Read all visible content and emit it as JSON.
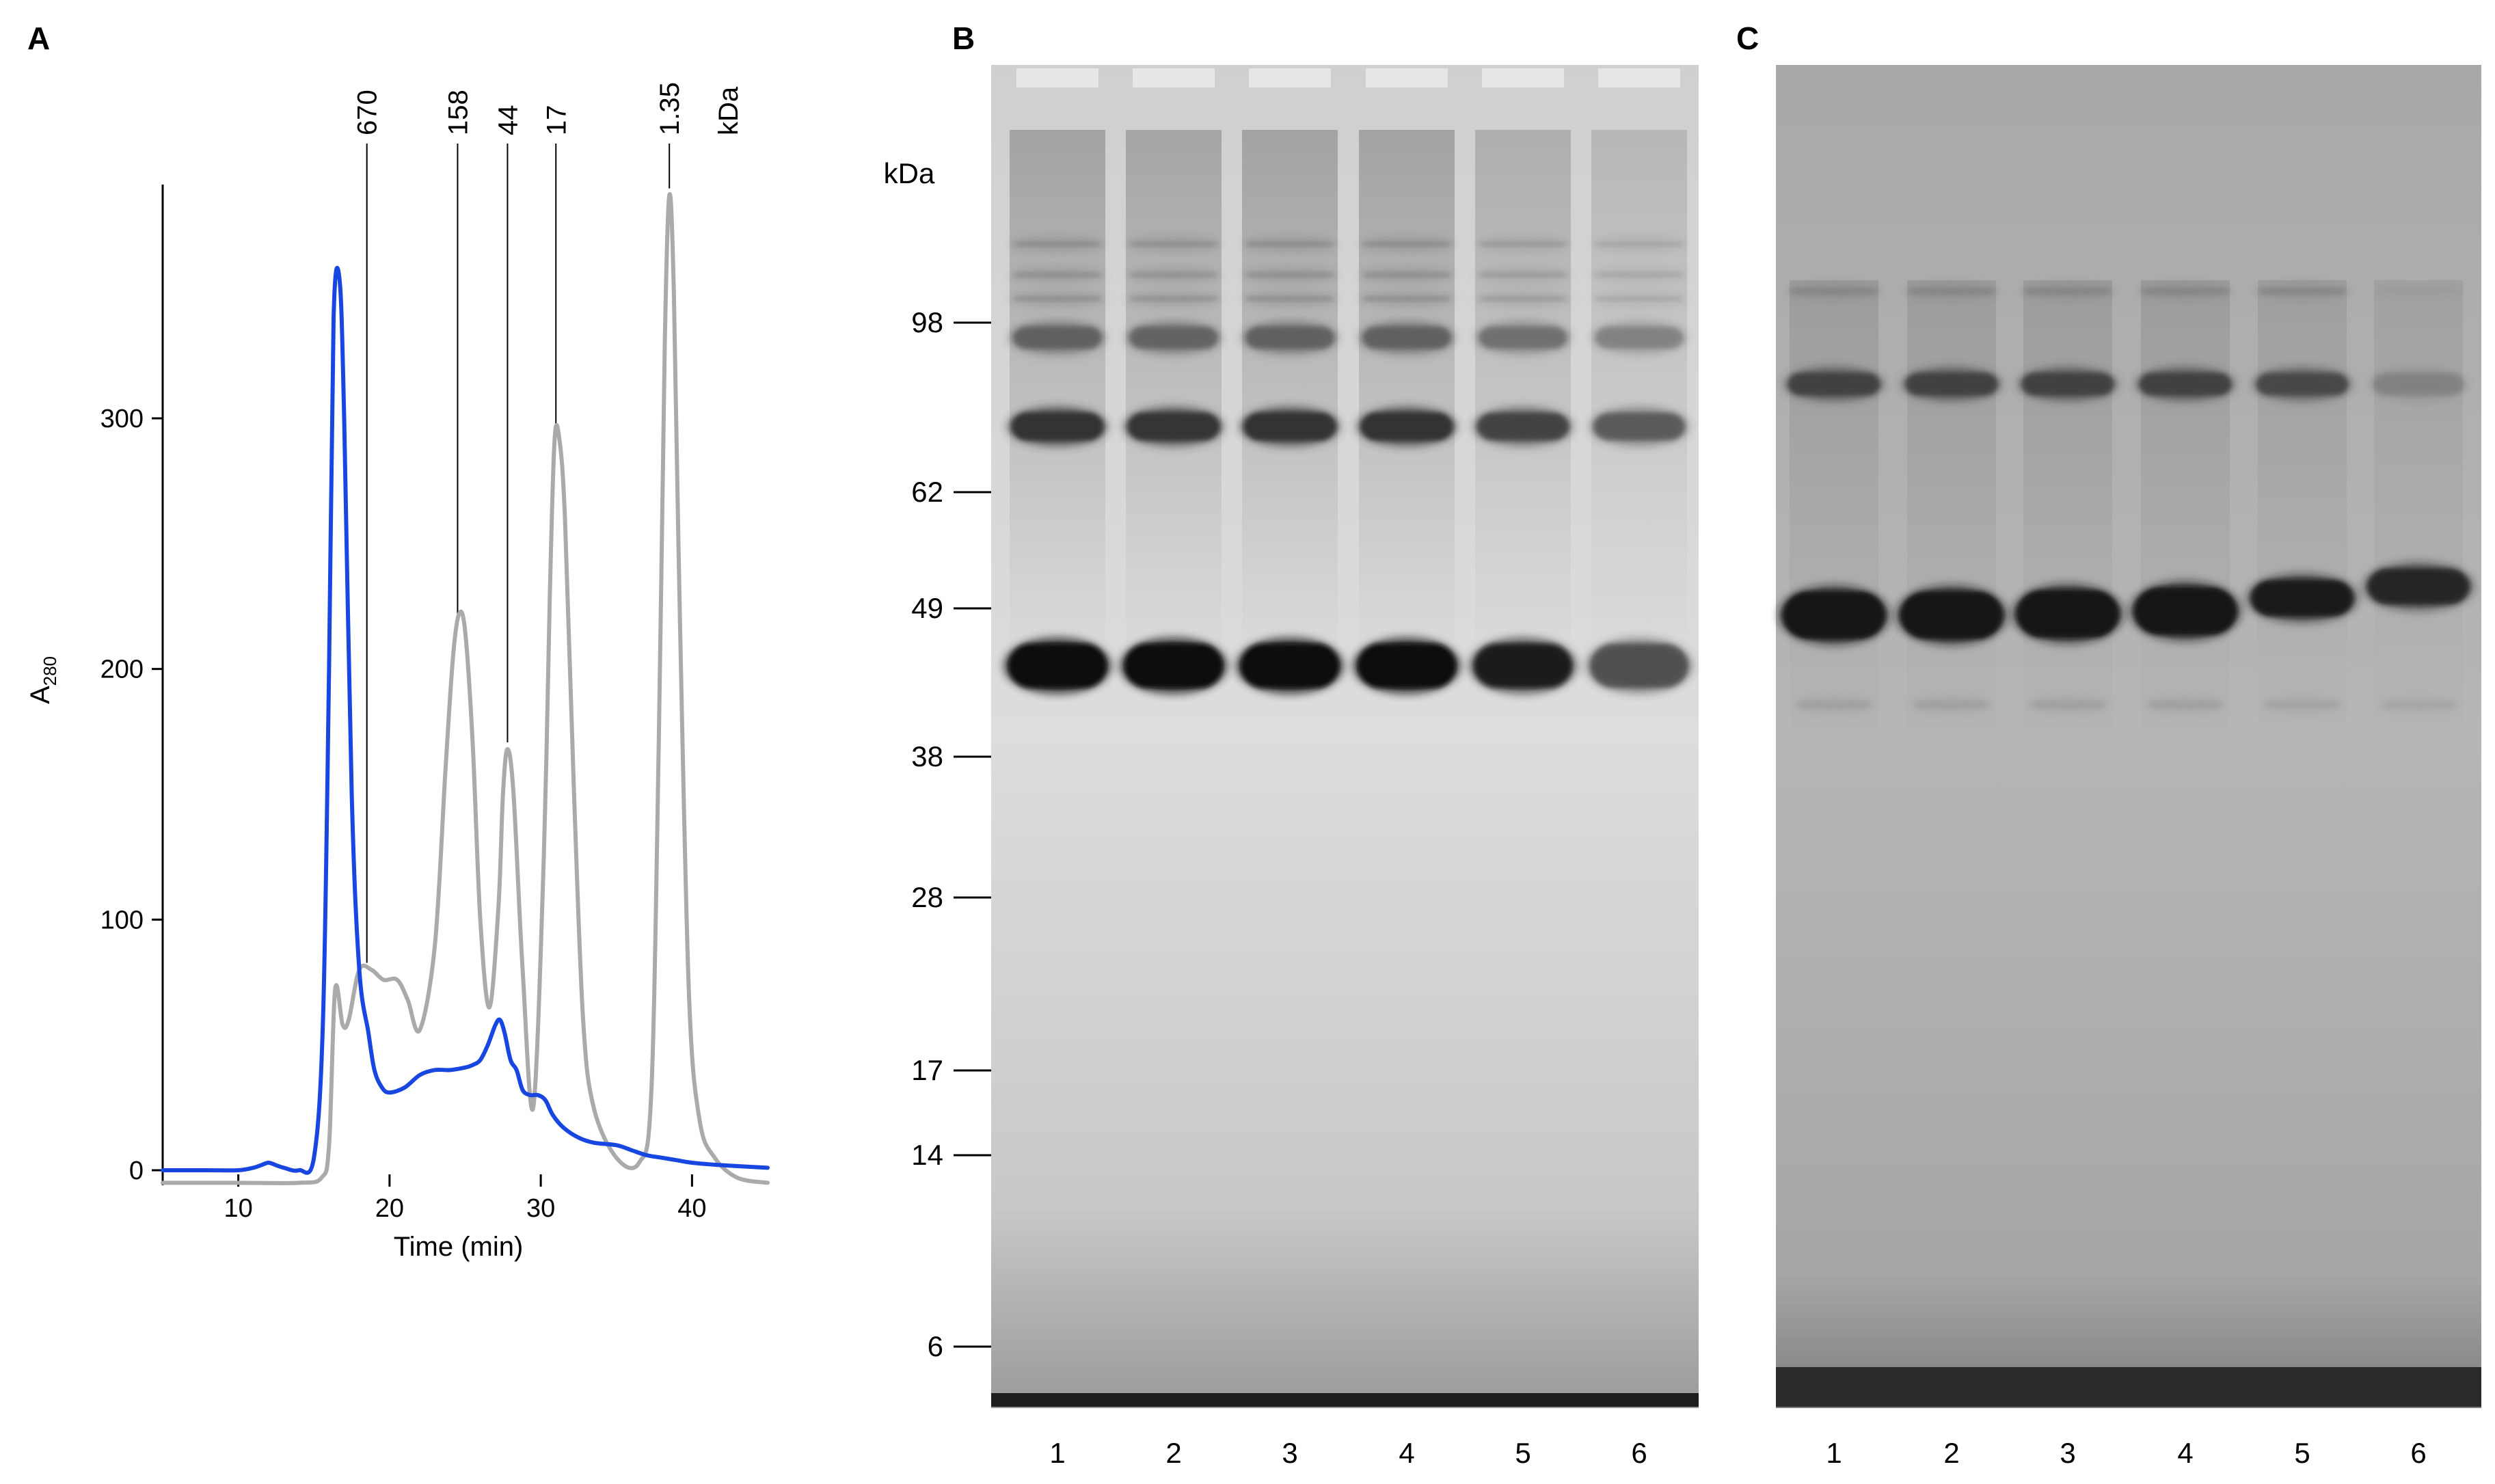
{
  "panels": {
    "a_label": "A",
    "b_label": "B",
    "c_label": "C"
  },
  "chart_data": {
    "type": "line",
    "xlabel": "Time (min)",
    "ylabel": "A",
    "ylabel_sub": "280",
    "xlim": [
      5,
      45
    ],
    "ylim": [
      0,
      390
    ],
    "xticks": [
      10,
      20,
      30,
      40
    ],
    "yticks": [
      0,
      100,
      200,
      300
    ],
    "standards_unit": "kDa",
    "standards": [
      {
        "label": "670",
        "time": 18.5
      },
      {
        "label": "158",
        "time": 24.5
      },
      {
        "label": "44",
        "time": 27.8
      },
      {
        "label": "17",
        "time": 31.0
      },
      {
        "label": "1.35",
        "time": 38.5
      }
    ],
    "series": [
      {
        "color": "#aaaaaa",
        "x": [
          5,
          10,
          14,
          15.5,
          16.0,
          16.4,
          16.9,
          17.3,
          18.0,
          18.8,
          19.6,
          20.5,
          21.2,
          22.0,
          23.0,
          23.7,
          24.2,
          24.6,
          25.0,
          25.5,
          26.0,
          26.6,
          27.2,
          27.5,
          27.8,
          28.2,
          28.8,
          29.5,
          30.2,
          30.6,
          30.9,
          31.2,
          31.6,
          32.2,
          32.8,
          33.5,
          35.0,
          36.5,
          37.3,
          37.8,
          38.2,
          38.5,
          38.8,
          39.2,
          39.8,
          40.5,
          41.5,
          43.0,
          45.0
        ],
        "y": [
          -5,
          -5,
          -5,
          -3,
          10,
          72,
          58,
          60,
          80,
          80,
          76,
          76,
          68,
          56,
          90,
          160,
          205,
          222,
          215,
          170,
          100,
          65,
          105,
          150,
          168,
          150,
          80,
          25,
          125,
          230,
          290,
          293,
          260,
          150,
          60,
          25,
          5,
          3,
          30,
          170,
          330,
          389,
          350,
          220,
          70,
          20,
          5,
          -3,
          -5
        ]
      },
      {
        "color": "#1846e0",
        "x": [
          5,
          8,
          10,
          11,
          11.5,
          12,
          12.5,
          13,
          14,
          15.0,
          15.6,
          16.0,
          16.3,
          16.7,
          17.0,
          17.5,
          18.0,
          18.6,
          19.0,
          19.5,
          20.0,
          21.0,
          22.0,
          23.0,
          24.0,
          25.0,
          25.5,
          26.0,
          26.5,
          27.0,
          27.3,
          27.6,
          28.0,
          28.4,
          28.8,
          29.3,
          29.8,
          30.3,
          30.8,
          31.5,
          32.5,
          33.5,
          35.0,
          36.0,
          37.0,
          38.0,
          39.0,
          40.0,
          42.0,
          45.0
        ],
        "y": [
          0,
          0,
          0,
          1,
          2,
          3,
          2,
          1,
          0,
          5,
          60,
          200,
          340,
          355,
          300,
          150,
          80,
          55,
          40,
          33,
          31,
          33,
          38,
          40,
          40,
          41,
          42,
          44,
          50,
          58,
          60,
          55,
          44,
          40,
          32,
          30,
          30,
          28,
          22,
          17,
          13,
          11,
          10,
          8,
          6,
          5,
          4,
          3,
          2,
          1
        ]
      }
    ]
  },
  "gel_b": {
    "kda_label": "kDa",
    "markers": [
      {
        "label": "98",
        "mw": 98
      },
      {
        "label": "62",
        "mw": 62
      },
      {
        "label": "49",
        "mw": 49
      },
      {
        "label": "38",
        "mw": 38
      },
      {
        "label": "28",
        "mw": 28
      },
      {
        "label": "17",
        "mw": 17
      },
      {
        "label": "14",
        "mw": 14
      },
      {
        "label": "6",
        "mw": 6
      }
    ],
    "lanes": [
      "1",
      "2",
      "3",
      "4",
      "5",
      "6"
    ],
    "lane_band_intensity": [
      1.0,
      0.95,
      1.0,
      1.0,
      0.75,
      0.55
    ]
  },
  "gel_c": {
    "lanes": [
      "1",
      "2",
      "3",
      "4",
      "5",
      "6"
    ],
    "lane_band_intensity": [
      1.0,
      1.0,
      1.0,
      1.0,
      0.85,
      0.7
    ]
  }
}
